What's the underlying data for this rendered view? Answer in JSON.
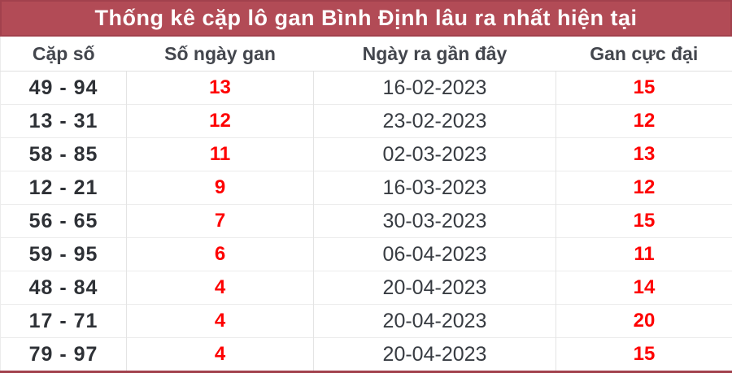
{
  "title": "Thống kê cặp lô gan Bình Định lâu ra nhất hiện tại",
  "colors": {
    "title_bg": "#b24b56",
    "title_border": "#a2414d",
    "highlight_red": "#fe0000",
    "header_text": "#43464d",
    "grid_line": "#e4e4e4"
  },
  "chart_data": {
    "type": "table",
    "title": "Thống kê cặp lô gan Bình Định lâu ra nhất hiện tại",
    "columns": [
      "Cặp số",
      "Số ngày gan",
      "Ngày ra gần đây",
      "Gan cực đại"
    ],
    "rows": [
      {
        "pair": "49 - 94",
        "gan_days": "13",
        "last_date": "16-02-2023",
        "max_gan": "15"
      },
      {
        "pair": "13 - 31",
        "gan_days": "12",
        "last_date": "23-02-2023",
        "max_gan": "12"
      },
      {
        "pair": "58 - 85",
        "gan_days": "11",
        "last_date": "02-03-2023",
        "max_gan": "13"
      },
      {
        "pair": "12 - 21",
        "gan_days": "9",
        "last_date": "16-03-2023",
        "max_gan": "12"
      },
      {
        "pair": "56 - 65",
        "gan_days": "7",
        "last_date": "30-03-2023",
        "max_gan": "15"
      },
      {
        "pair": "59 - 95",
        "gan_days": "6",
        "last_date": "06-04-2023",
        "max_gan": "11"
      },
      {
        "pair": "48 - 84",
        "gan_days": "4",
        "last_date": "20-04-2023",
        "max_gan": "14"
      },
      {
        "pair": "17 - 71",
        "gan_days": "4",
        "last_date": "20-04-2023",
        "max_gan": "20"
      },
      {
        "pair": "79 - 97",
        "gan_days": "4",
        "last_date": "20-04-2023",
        "max_gan": "15"
      }
    ]
  }
}
